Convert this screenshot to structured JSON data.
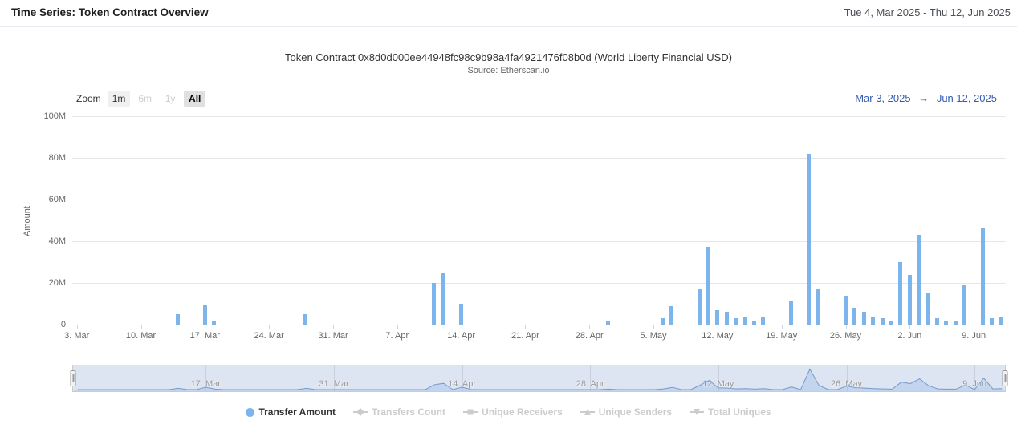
{
  "header": {
    "title": "Time Series: Token Contract Overview",
    "date_range": "Tue 4, Mar 2025 - Thu 12, Jun 2025"
  },
  "chart": {
    "title": "Token Contract 0x8d0d000ee44948fc98c9b98a4fa4921476f08b0d (World Liberty Financial USD)",
    "subtitle": "Source: Etherscan.io",
    "zoom_label": "Zoom",
    "zoom_buttons": [
      {
        "label": "1m",
        "state": "enabled"
      },
      {
        "label": "6m",
        "state": "disabled"
      },
      {
        "label": "1y",
        "state": "disabled"
      },
      {
        "label": "All",
        "state": "selected"
      }
    ],
    "range_from": "Mar 3, 2025",
    "range_separator": "→",
    "range_to": "Jun 12, 2025",
    "bar_color": "#7cb5ec",
    "range_text_color": "#335cad"
  },
  "legend": {
    "items": [
      {
        "label": "Transfer Amount",
        "marker": "circle",
        "color": "#7cb5ec",
        "active": true
      },
      {
        "label": "Transfers Count",
        "marker": "diamond",
        "color": "#cccccc",
        "active": false
      },
      {
        "label": "Unique Receivers",
        "marker": "square",
        "color": "#cccccc",
        "active": false
      },
      {
        "label": "Unique Senders",
        "marker": "triangle",
        "color": "#cccccc",
        "active": false
      },
      {
        "label": "Total Uniques",
        "marker": "triangle-down",
        "color": "#cccccc",
        "active": false
      }
    ]
  },
  "chart_data": {
    "type": "bar",
    "title": "Token Contract 0x8d0d000ee44948fc98c9b98a4fa4921476f08b0d (World Liberty Financial USD)",
    "subtitle": "Source: Etherscan.io",
    "series_name": "Transfer Amount",
    "xlabel": "",
    "ylabel": "Amount",
    "ylim": [
      0,
      100000000
    ],
    "unit": "millions",
    "grid": true,
    "x_start": "2025-03-03",
    "x_end": "2025-06-12",
    "y_ticks": [
      "0",
      "20M",
      "40M",
      "60M",
      "80M",
      "100M"
    ],
    "x_ticks": [
      {
        "label": "3. Mar",
        "day": 0
      },
      {
        "label": "10. Mar",
        "day": 7
      },
      {
        "label": "17. Mar",
        "day": 14
      },
      {
        "label": "24. Mar",
        "day": 21
      },
      {
        "label": "31. Mar",
        "day": 28
      },
      {
        "label": "7. Apr",
        "day": 35
      },
      {
        "label": "14. Apr",
        "day": 42
      },
      {
        "label": "21. Apr",
        "day": 49
      },
      {
        "label": "28. Apr",
        "day": 56
      },
      {
        "label": "5. May",
        "day": 63
      },
      {
        "label": "12. May",
        "day": 70
      },
      {
        "label": "19. May",
        "day": 77
      },
      {
        "label": "26. May",
        "day": 84
      },
      {
        "label": "2. Jun",
        "day": 91
      },
      {
        "label": "9. Jun",
        "day": 98
      }
    ],
    "navigator_ticks": [
      {
        "label": "17. Mar",
        "day": 14
      },
      {
        "label": "31. Mar",
        "day": 28
      },
      {
        "label": "14. Apr",
        "day": 42
      },
      {
        "label": "28. Apr",
        "day": 56
      },
      {
        "label": "12. May",
        "day": 70
      },
      {
        "label": "26. May",
        "day": 84
      },
      {
        "label": "9. Jun",
        "day": 98
      }
    ],
    "points_millions": {
      "2025-03-14": 5,
      "2025-03-17": 9.5,
      "2025-03-18": 2,
      "2025-03-28": 5,
      "2025-04-11": 20,
      "2025-04-12": 25,
      "2025-04-14": 10,
      "2025-04-30": 2,
      "2025-05-06": 3,
      "2025-05-07": 9,
      "2025-05-10": 17.5,
      "2025-05-11": 37.5,
      "2025-05-12": 7,
      "2025-05-13": 6,
      "2025-05-14": 3,
      "2025-05-15": 4,
      "2025-05-16": 2,
      "2025-05-17": 4,
      "2025-05-20": 11,
      "2025-05-22": 82,
      "2025-05-23": 17.5,
      "2025-05-26": 14,
      "2025-05-27": 8,
      "2025-05-28": 6,
      "2025-05-29": 4,
      "2025-05-30": 3,
      "2025-05-31": 2,
      "2025-06-01": 30,
      "2025-06-02": 24,
      "2025-06-03": 43,
      "2025-06-04": 15,
      "2025-06-05": 3,
      "2025-06-06": 2,
      "2025-06-07": 2,
      "2025-06-08": 19,
      "2025-06-10": 46,
      "2025-06-11": 3,
      "2025-06-12": 4
    }
  }
}
